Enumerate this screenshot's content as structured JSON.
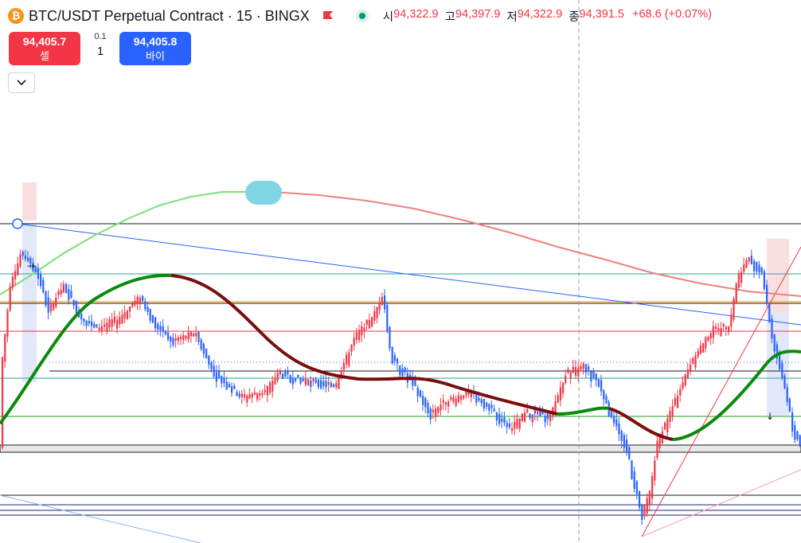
{
  "header": {
    "coin_symbol": "₿",
    "title": "BTC/USDT Perpetual Contract · 15 · BINGX",
    "ohlc": {
      "open_label": "시",
      "open": "94,322.9",
      "high_label": "고",
      "high": "94,397.9",
      "low_label": "저",
      "low": "94,322.9",
      "close_label": "종",
      "close": "94,391.5",
      "change": "+68.6 (+0.07%)"
    }
  },
  "trade": {
    "sell_price": "94,405.7",
    "sell_label": "셀",
    "buy_price": "94,405.8",
    "buy_label": "바이",
    "qty_step": "0.1",
    "qty": "1"
  },
  "colors": {
    "up": "#089981",
    "down": "#f23645",
    "accent": "#2962ff",
    "ma_green": "#0a8a0a",
    "ma_red": "#7a0e0e"
  }
}
